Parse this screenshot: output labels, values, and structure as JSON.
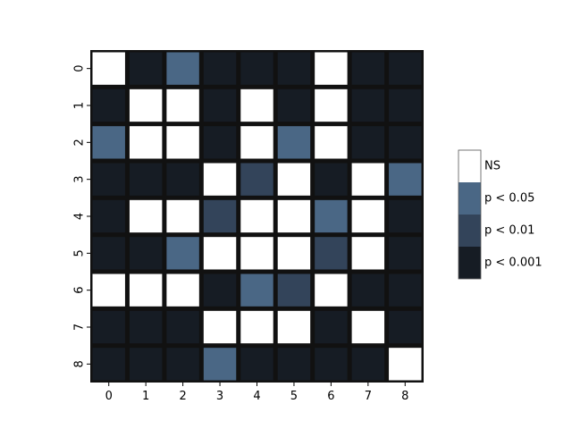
{
  "chart_data": {
    "type": "heatmap",
    "title": "",
    "xlabel": "",
    "ylabel": "",
    "x_categories": [
      "0",
      "1",
      "2",
      "3",
      "4",
      "5",
      "6",
      "7",
      "8"
    ],
    "y_categories": [
      "0",
      "1",
      "2",
      "3",
      "4",
      "5",
      "6",
      "7",
      "8"
    ],
    "levels": [
      {
        "label": "NS",
        "color": "#ffffff"
      },
      {
        "label": "p < 0.05",
        "color": "#4a6785"
      },
      {
        "label": "p < 0.01",
        "color": "#33445a"
      },
      {
        "label": "p < 0.001",
        "color": "#161c24"
      }
    ],
    "matrix": [
      [
        0,
        3,
        1,
        3,
        3,
        3,
        0,
        3,
        3
      ],
      [
        3,
        0,
        0,
        3,
        0,
        3,
        0,
        3,
        3
      ],
      [
        1,
        0,
        0,
        3,
        0,
        1,
        0,
        3,
        3
      ],
      [
        3,
        3,
        3,
        0,
        2,
        0,
        3,
        0,
        1
      ],
      [
        3,
        0,
        0,
        2,
        0,
        0,
        1,
        0,
        3
      ],
      [
        3,
        3,
        1,
        0,
        0,
        0,
        2,
        0,
        3
      ],
      [
        0,
        0,
        0,
        3,
        1,
        2,
        0,
        3,
        3
      ],
      [
        3,
        3,
        3,
        0,
        0,
        0,
        3,
        0,
        3
      ],
      [
        3,
        3,
        3,
        1,
        3,
        3,
        3,
        3,
        0
      ]
    ],
    "legend_placement": "right"
  }
}
